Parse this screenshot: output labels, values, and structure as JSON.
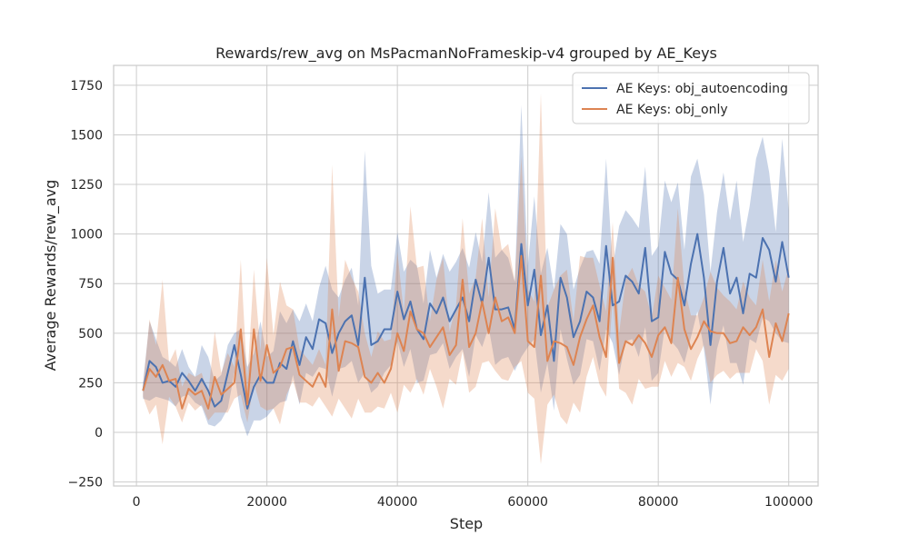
{
  "chart_data": {
    "type": "line",
    "title": "Rewards/rew_avg on MsPacmanNoFrameskip-v4 grouped by AE_Keys",
    "xlabel": "Step",
    "ylabel": "Average Rewards/rew_avg",
    "xlim": [
      -3500,
      104500
    ],
    "ylim": [
      -270,
      1850
    ],
    "xticks": [
      0,
      20000,
      40000,
      60000,
      80000,
      100000
    ],
    "xtick_labels": [
      "0",
      "20000",
      "40000",
      "60000",
      "80000",
      "100000"
    ],
    "yticks": [
      -250,
      0,
      250,
      500,
      750,
      1000,
      1250,
      1500,
      1750
    ],
    "ytick_labels": [
      "−250",
      "0",
      "250",
      "500",
      "750",
      "1000",
      "1250",
      "1500",
      "1750"
    ],
    "grid": true,
    "legend_position": "top-right",
    "background": "#ffffff",
    "grid_color": "#cccccc",
    "series": [
      {
        "name": "AE Keys: obj_autoencoding",
        "color": "#4c72b0",
        "x": [
          1000,
          2000,
          3000,
          4000,
          5000,
          6000,
          7000,
          8000,
          9000,
          10000,
          11000,
          12000,
          13000,
          14000,
          15000,
          16000,
          17000,
          18000,
          19000,
          20000,
          21000,
          22000,
          23000,
          24000,
          25000,
          26000,
          27000,
          28000,
          29000,
          30000,
          31000,
          32000,
          33000,
          34000,
          35000,
          36000,
          37000,
          38000,
          39000,
          40000,
          41000,
          42000,
          43000,
          44000,
          45000,
          46000,
          47000,
          48000,
          49000,
          50000,
          51000,
          52000,
          53000,
          54000,
          55000,
          56000,
          57000,
          58000,
          59000,
          60000,
          61000,
          62000,
          63000,
          64000,
          65000,
          66000,
          67000,
          68000,
          69000,
          70000,
          71000,
          72000,
          73000,
          74000,
          75000,
          76000,
          77000,
          78000,
          79000,
          80000,
          81000,
          82000,
          83000,
          84000,
          85000,
          86000,
          87000,
          88000,
          89000,
          90000,
          91000,
          92000,
          93000,
          94000,
          95000,
          96000,
          97000,
          98000,
          99000,
          100000
        ],
        "y": [
          210,
          360,
          330,
          250,
          260,
          230,
          300,
          260,
          210,
          270,
          210,
          130,
          160,
          300,
          440,
          290,
          120,
          230,
          290,
          250,
          250,
          350,
          320,
          460,
          340,
          480,
          420,
          570,
          550,
          400,
          500,
          560,
          590,
          440,
          780,
          440,
          460,
          520,
          520,
          710,
          570,
          660,
          520,
          470,
          650,
          600,
          680,
          560,
          620,
          680,
          560,
          770,
          650,
          880,
          620,
          620,
          630,
          520,
          950,
          640,
          820,
          490,
          640,
          360,
          780,
          680,
          480,
          560,
          710,
          680,
          560,
          940,
          640,
          660,
          790,
          760,
          700,
          930,
          560,
          580,
          910,
          800,
          770,
          640,
          850,
          1000,
          780,
          440,
          760,
          930,
          700,
          780,
          600,
          800,
          780,
          980,
          920,
          760,
          960,
          780
        ],
        "band_upper": [
          250,
          560,
          470,
          380,
          360,
          330,
          420,
          330,
          280,
          440,
          380,
          260,
          290,
          440,
          500,
          520,
          330,
          400,
          560,
          380,
          410,
          610,
          550,
          620,
          560,
          650,
          560,
          730,
          840,
          720,
          680,
          770,
          830,
          640,
          1420,
          840,
          700,
          720,
          720,
          1010,
          810,
          870,
          840,
          650,
          920,
          780,
          900,
          810,
          860,
          930,
          830,
          1010,
          860,
          1210,
          880,
          920,
          880,
          760,
          1650,
          840,
          1190,
          800,
          930,
          720,
          1050,
          1000,
          720,
          830,
          910,
          920,
          850,
          1380,
          830,
          1040,
          1120,
          1080,
          1030,
          1340,
          890,
          940,
          1270,
          1160,
          1260,
          920,
          1290,
          1380,
          1200,
          810,
          1110,
          1310,
          1070,
          1270,
          960,
          1140,
          1380,
          1490,
          1310,
          1010,
          1480,
          1120
        ],
        "band_lower": [
          170,
          160,
          180,
          170,
          160,
          130,
          180,
          190,
          150,
          130,
          40,
          30,
          60,
          120,
          300,
          80,
          -20,
          60,
          60,
          80,
          120,
          150,
          160,
          290,
          140,
          300,
          280,
          330,
          320,
          180,
          320,
          330,
          360,
          250,
          300,
          200,
          230,
          300,
          340,
          460,
          330,
          420,
          250,
          260,
          390,
          400,
          450,
          320,
          380,
          420,
          280,
          490,
          430,
          530,
          340,
          370,
          380,
          310,
          380,
          430,
          470,
          200,
          350,
          110,
          520,
          370,
          240,
          290,
          470,
          460,
          310,
          520,
          450,
          290,
          460,
          470,
          380,
          530,
          260,
          300,
          530,
          460,
          420,
          350,
          480,
          610,
          420,
          140,
          420,
          540,
          350,
          350,
          240,
          470,
          450,
          580,
          560,
          500,
          460,
          450
        ]
      },
      {
        "name": "AE Keys: obj_only",
        "color": "#dd8452",
        "x": [
          1000,
          2000,
          3000,
          4000,
          5000,
          6000,
          7000,
          8000,
          9000,
          10000,
          11000,
          12000,
          13000,
          14000,
          15000,
          16000,
          17000,
          18000,
          19000,
          20000,
          21000,
          22000,
          23000,
          24000,
          25000,
          26000,
          27000,
          28000,
          29000,
          30000,
          31000,
          32000,
          33000,
          34000,
          35000,
          36000,
          37000,
          38000,
          39000,
          40000,
          41000,
          42000,
          43000,
          44000,
          45000,
          46000,
          47000,
          48000,
          49000,
          50000,
          51000,
          52000,
          53000,
          54000,
          55000,
          56000,
          57000,
          58000,
          59000,
          60000,
          61000,
          62000,
          63000,
          64000,
          65000,
          66000,
          67000,
          68000,
          69000,
          70000,
          71000,
          72000,
          73000,
          74000,
          75000,
          76000,
          77000,
          78000,
          79000,
          80000,
          81000,
          82000,
          83000,
          84000,
          85000,
          86000,
          87000,
          88000,
          89000,
          90000,
          91000,
          92000,
          93000,
          94000,
          95000,
          96000,
          97000,
          98000,
          99000,
          100000
        ],
        "y": [
          210,
          320,
          280,
          340,
          260,
          270,
          120,
          220,
          190,
          210,
          120,
          280,
          190,
          220,
          250,
          520,
          140,
          520,
          260,
          440,
          300,
          330,
          420,
          430,
          290,
          260,
          230,
          300,
          230,
          620,
          310,
          460,
          450,
          430,
          280,
          250,
          300,
          250,
          320,
          500,
          410,
          610,
          520,
          500,
          430,
          480,
          530,
          390,
          440,
          770,
          430,
          500,
          660,
          500,
          680,
          560,
          580,
          500,
          890,
          460,
          430,
          790,
          360,
          460,
          450,
          430,
          340,
          480,
          570,
          640,
          480,
          380,
          880,
          350,
          460,
          440,
          490,
          450,
          380,
          490,
          530,
          450,
          780,
          520,
          420,
          480,
          560,
          510,
          500,
          500,
          450,
          460,
          530,
          490,
          530,
          620,
          380,
          550,
          460,
          600
        ],
        "band_upper": [
          230,
          570,
          440,
          770,
          350,
          420,
          230,
          300,
          280,
          300,
          190,
          510,
          300,
          400,
          330,
          870,
          260,
          820,
          410,
          880,
          490,
          760,
          640,
          620,
          420,
          380,
          340,
          420,
          340,
          1350,
          580,
          870,
          780,
          710,
          500,
          380,
          510,
          460,
          470,
          910,
          600,
          1140,
          830,
          840,
          560,
          770,
          880,
          510,
          640,
          1080,
          700,
          780,
          1080,
          680,
          1130,
          920,
          950,
          760,
          1390,
          720,
          660,
          1710,
          630,
          720,
          790,
          820,
          560,
          890,
          880,
          880,
          740,
          610,
          1060,
          500,
          770,
          830,
          740,
          710,
          580,
          790,
          730,
          670,
          1130,
          730,
          590,
          590,
          680,
          810,
          730,
          690,
          660,
          620,
          760,
          680,
          640,
          870,
          660,
          870,
          710,
          830
        ],
        "band_lower": [
          180,
          90,
          140,
          -60,
          180,
          130,
          50,
          150,
          110,
          140,
          60,
          100,
          100,
          100,
          170,
          190,
          50,
          250,
          130,
          110,
          120,
          40,
          190,
          260,
          150,
          150,
          130,
          180,
          130,
          80,
          170,
          120,
          70,
          170,
          100,
          100,
          130,
          120,
          200,
          100,
          240,
          200,
          270,
          190,
          320,
          230,
          120,
          270,
          240,
          410,
          200,
          230,
          350,
          360,
          310,
          270,
          260,
          330,
          360,
          200,
          170,
          -160,
          140,
          190,
          80,
          40,
          150,
          100,
          280,
          380,
          240,
          180,
          680,
          220,
          200,
          140,
          270,
          220,
          230,
          230,
          360,
          280,
          350,
          330,
          260,
          370,
          440,
          250,
          290,
          310,
          270,
          300,
          300,
          300,
          420,
          360,
          140,
          290,
          260,
          320
        ]
      }
    ]
  }
}
